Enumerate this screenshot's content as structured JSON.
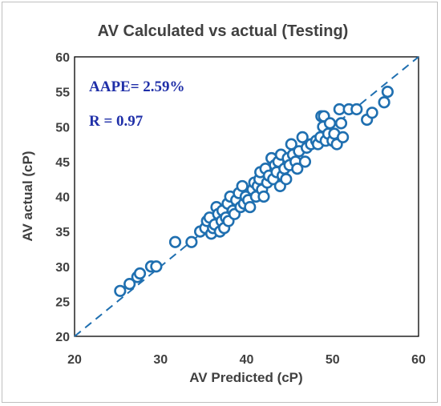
{
  "chart_data": {
    "type": "scatter",
    "title": "AV Calculated vs actual (Testing)",
    "xlabel": "AV Predicted (cP)",
    "ylabel": "AV actual (cP)",
    "xlim": [
      20,
      60
    ],
    "ylim": [
      20,
      60
    ],
    "xticks": [
      "20",
      "30",
      "40",
      "50",
      "60"
    ],
    "yticks": [
      "20",
      "25",
      "30",
      "35",
      "40",
      "45",
      "50",
      "55",
      "60"
    ],
    "grid": false,
    "legend": "none",
    "annotations": [
      "AAPE= 2.59%",
      "R = 0.97"
    ],
    "reference_line": {
      "style": "dashed",
      "from": [
        20,
        20
      ],
      "to": [
        60,
        60
      ],
      "color": "#1f6fb0"
    },
    "marker": {
      "shape": "open-circle",
      "color": "#1f6fb0"
    },
    "points": [
      [
        25.3,
        26.5
      ],
      [
        26.4,
        27.5
      ],
      [
        27.3,
        28.5
      ],
      [
        27.6,
        29.0
      ],
      [
        28.9,
        30.0
      ],
      [
        29.5,
        30.0
      ],
      [
        31.7,
        33.5
      ],
      [
        33.6,
        33.5
      ],
      [
        34.6,
        35.0
      ],
      [
        35.2,
        35.5
      ],
      [
        35.4,
        36.5
      ],
      [
        35.7,
        37.0
      ],
      [
        35.9,
        34.7
      ],
      [
        36.1,
        35.5
      ],
      [
        36.3,
        36.0
      ],
      [
        36.5,
        38.5
      ],
      [
        36.7,
        37.5
      ],
      [
        36.9,
        35.0
      ],
      [
        37.1,
        36.5
      ],
      [
        37.2,
        38.0
      ],
      [
        37.4,
        35.5
      ],
      [
        37.6,
        37.0
      ],
      [
        37.8,
        39.0
      ],
      [
        37.9,
        36.5
      ],
      [
        38.1,
        40.0
      ],
      [
        38.4,
        38.0
      ],
      [
        38.6,
        37.5
      ],
      [
        38.8,
        39.5
      ],
      [
        39.1,
        40.5
      ],
      [
        39.3,
        38.5
      ],
      [
        39.5,
        41.5
      ],
      [
        39.7,
        39.0
      ],
      [
        39.9,
        40.0
      ],
      [
        40.2,
        39.5
      ],
      [
        40.4,
        38.5
      ],
      [
        40.7,
        41.0
      ],
      [
        40.9,
        42.0
      ],
      [
        41.1,
        40.0
      ],
      [
        41.3,
        41.5
      ],
      [
        41.5,
        42.5
      ],
      [
        41.6,
        43.5
      ],
      [
        41.8,
        41.0
      ],
      [
        42.0,
        40.0
      ],
      [
        42.2,
        44.0
      ],
      [
        42.4,
        42.0
      ],
      [
        42.6,
        43.0
      ],
      [
        42.9,
        45.5
      ],
      [
        43.1,
        42.5
      ],
      [
        43.3,
        44.5
      ],
      [
        43.5,
        43.5
      ],
      [
        43.7,
        45.0
      ],
      [
        43.9,
        41.5
      ],
      [
        44.0,
        46.0
      ],
      [
        44.2,
        43.0
      ],
      [
        44.4,
        44.0
      ],
      [
        44.6,
        42.5
      ],
      [
        44.8,
        45.5
      ],
      [
        45.0,
        44.5
      ],
      [
        45.2,
        47.5
      ],
      [
        45.4,
        46.0
      ],
      [
        45.7,
        45.0
      ],
      [
        45.9,
        44.0
      ],
      [
        46.1,
        46.5
      ],
      [
        46.5,
        48.5
      ],
      [
        46.8,
        45.0
      ],
      [
        47.0,
        47.0
      ],
      [
        47.5,
        47.5
      ],
      [
        48.1,
        48.0
      ],
      [
        48.3,
        47.5
      ],
      [
        48.6,
        48.5
      ],
      [
        48.7,
        51.5
      ],
      [
        48.9,
        50.0
      ],
      [
        49.0,
        51.5
      ],
      [
        49.2,
        48.0
      ],
      [
        49.5,
        49.0
      ],
      [
        49.7,
        50.5
      ],
      [
        50.0,
        48.0
      ],
      [
        50.2,
        49.0
      ],
      [
        50.5,
        47.5
      ],
      [
        50.8,
        52.5
      ],
      [
        51.0,
        50.5
      ],
      [
        51.2,
        48.5
      ],
      [
        51.9,
        52.5
      ],
      [
        52.8,
        52.5
      ],
      [
        54.0,
        51.0
      ],
      [
        54.6,
        52.0
      ],
      [
        56.0,
        53.5
      ],
      [
        56.4,
        55.0
      ]
    ]
  }
}
